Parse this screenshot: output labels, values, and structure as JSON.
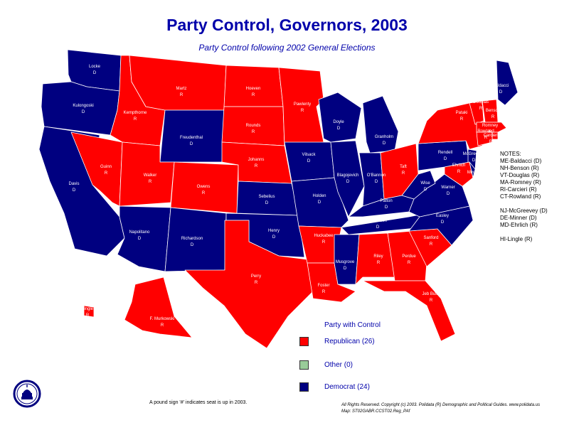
{
  "title": "Party Control, Governors, 2003",
  "subtitle": "Party Control following 2002 General Elections",
  "colors": {
    "republican": "#ff0000",
    "democrat": "#000080",
    "other": "#99cc99",
    "label_text": "#ffffff"
  },
  "governors": [
    {
      "state": "WA",
      "name": "Locke",
      "party": "D"
    },
    {
      "state": "OR",
      "name": "Kulongoski",
      "party": "D"
    },
    {
      "state": "CA",
      "name": "Davis",
      "party": "D"
    },
    {
      "state": "ID",
      "name": "Kempthorne",
      "party": "R"
    },
    {
      "state": "NV",
      "name": "Guinn",
      "party": "R"
    },
    {
      "state": "MT",
      "name": "Martz",
      "party": "R"
    },
    {
      "state": "WY",
      "name": "Freudenthal",
      "party": "D"
    },
    {
      "state": "UT",
      "name": "Walker",
      "party": "R"
    },
    {
      "state": "AZ",
      "name": "Napolitano",
      "party": "D"
    },
    {
      "state": "CO",
      "name": "Owens",
      "party": "R"
    },
    {
      "state": "NM",
      "name": "Richardson",
      "party": "D"
    },
    {
      "state": "ND",
      "name": "Hoeven",
      "party": "R"
    },
    {
      "state": "SD",
      "name": "Rounds",
      "party": "R"
    },
    {
      "state": "NE",
      "name": "Johanns",
      "party": "R"
    },
    {
      "state": "KS",
      "name": "Sebelius",
      "party": "D"
    },
    {
      "state": "OK",
      "name": "Henry",
      "party": "D"
    },
    {
      "state": "TX",
      "name": "Perry",
      "party": "R"
    },
    {
      "state": "MN",
      "name": "Pawlenty",
      "party": "R"
    },
    {
      "state": "IA",
      "name": "Vilsack",
      "party": "D"
    },
    {
      "state": "MO",
      "name": "Holden",
      "party": "D"
    },
    {
      "state": "AR",
      "name": "Huckabee",
      "party": "R"
    },
    {
      "state": "LA",
      "name": "Foster",
      "party": "R"
    },
    {
      "state": "WI",
      "name": "Doyle",
      "party": "D"
    },
    {
      "state": "IL",
      "name": "Blagojevich",
      "party": "D"
    },
    {
      "state": "MI",
      "name": "Granholm",
      "party": "D"
    },
    {
      "state": "IN",
      "name": "O'Bannon",
      "party": "D"
    },
    {
      "state": "OH",
      "name": "Taft",
      "party": "R"
    },
    {
      "state": "KY",
      "name": "Patton",
      "party": "D"
    },
    {
      "state": "TN",
      "name": "Bredesen",
      "party": "D"
    },
    {
      "state": "MS",
      "name": "Musgrove",
      "party": "D"
    },
    {
      "state": "AL",
      "name": "Riley",
      "party": "R"
    },
    {
      "state": "GA",
      "name": "Perdue",
      "party": "R"
    },
    {
      "state": "FL",
      "name": "Jeb Bush",
      "party": "R"
    },
    {
      "state": "SC",
      "name": "Sanford",
      "party": "R"
    },
    {
      "state": "NC",
      "name": "Easley",
      "party": "D"
    },
    {
      "state": "VA",
      "name": "Warner",
      "party": "D"
    },
    {
      "state": "WV",
      "name": "Wise",
      "party": "D"
    },
    {
      "state": "PA",
      "name": "Rendell",
      "party": "D"
    },
    {
      "state": "NY",
      "name": "Pataki",
      "party": "R"
    },
    {
      "state": "NJ",
      "name": "McGreevey",
      "party": "D"
    },
    {
      "state": "MD",
      "name": "Ehrlich",
      "party": "R"
    },
    {
      "state": "DE",
      "name": "Minner",
      "party": "D"
    },
    {
      "state": "ME",
      "name": "Baldacci",
      "party": "D"
    },
    {
      "state": "VT",
      "name": "Douglas",
      "party": "R"
    },
    {
      "state": "NH",
      "name": "Benson",
      "party": "R"
    },
    {
      "state": "MA",
      "name": "Romney",
      "party": "R"
    },
    {
      "state": "RI",
      "name": "Carcieri",
      "party": "R"
    },
    {
      "state": "CT",
      "name": "Rowland",
      "party": "R"
    },
    {
      "state": "AK",
      "name": "F. Murkowski",
      "party": "R"
    },
    {
      "state": "HI",
      "name": "Lingle",
      "party": "R"
    }
  ],
  "notes": {
    "heading": "NOTES:",
    "lines": [
      "ME-Baldacci (D)",
      "NH-Benson (R)",
      "VT-Douglas (R)",
      "MA-Romney (R)",
      "RI-Carcieri (R)",
      "CT-Rowland (R)",
      "",
      "NJ-McGreevey (D)",
      "DE-Minner (D)",
      "MD-Ehrlich (R)",
      "",
      "HI-Lingle (R)"
    ]
  },
  "legend": {
    "title": "Party with Control",
    "items": [
      {
        "label": "Republican (26)",
        "color": "#ff0000"
      },
      {
        "label": "Other (0)",
        "color": "#99cc99"
      },
      {
        "label": "Democrat (24)",
        "color": "#000080"
      }
    ]
  },
  "footnote": "A pound sign '#' indicates seat is up in 2003.",
  "copyright": [
    "All Rights Reserved. Copyright (c) 2003. Polidata (R) Demographic and Political Guides. www.polidata.us",
    "Map: ST02GABR.CCST02.Reg_PAf"
  ],
  "logo_icon": "capitol-dome-seal-icon"
}
